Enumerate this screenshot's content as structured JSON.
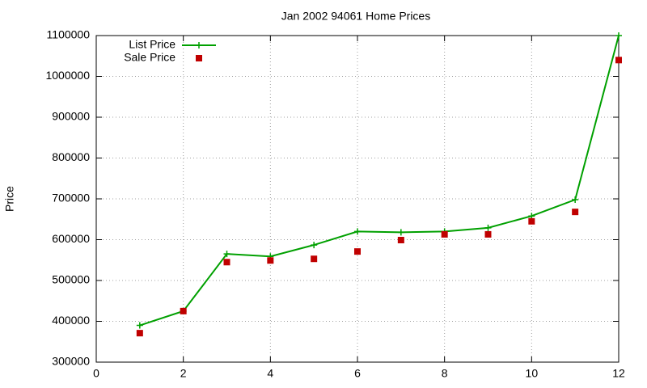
{
  "chart_data": {
    "type": "line",
    "title": "Jan 2002 94061 Home Prices",
    "y_label": "Price",
    "x": [
      1,
      2,
      3,
      4,
      5,
      6,
      7,
      8,
      9,
      10,
      11,
      12
    ],
    "series": [
      {
        "name": "List Price",
        "color": "#00a000",
        "line": true,
        "marker": "plus",
        "values": [
          390000,
          425000,
          565000,
          559000,
          587000,
          620000,
          618000,
          620000,
          629000,
          658000,
          698000,
          1100000
        ]
      },
      {
        "name": "Sale Price",
        "color": "#c00000",
        "line": false,
        "marker": "square",
        "values": [
          371000,
          425000,
          545000,
          549000,
          553000,
          571000,
          599000,
          613000,
          613000,
          645000,
          668000,
          1040000
        ]
      }
    ],
    "xlim": [
      0,
      12
    ],
    "xticks": [
      0,
      2,
      4,
      6,
      8,
      10,
      12
    ],
    "ylim": [
      300000,
      1100000
    ],
    "yticks": [
      300000,
      400000,
      500000,
      600000,
      700000,
      800000,
      900000,
      1000000,
      1100000
    ],
    "grid": true,
    "legend": "top-left"
  }
}
